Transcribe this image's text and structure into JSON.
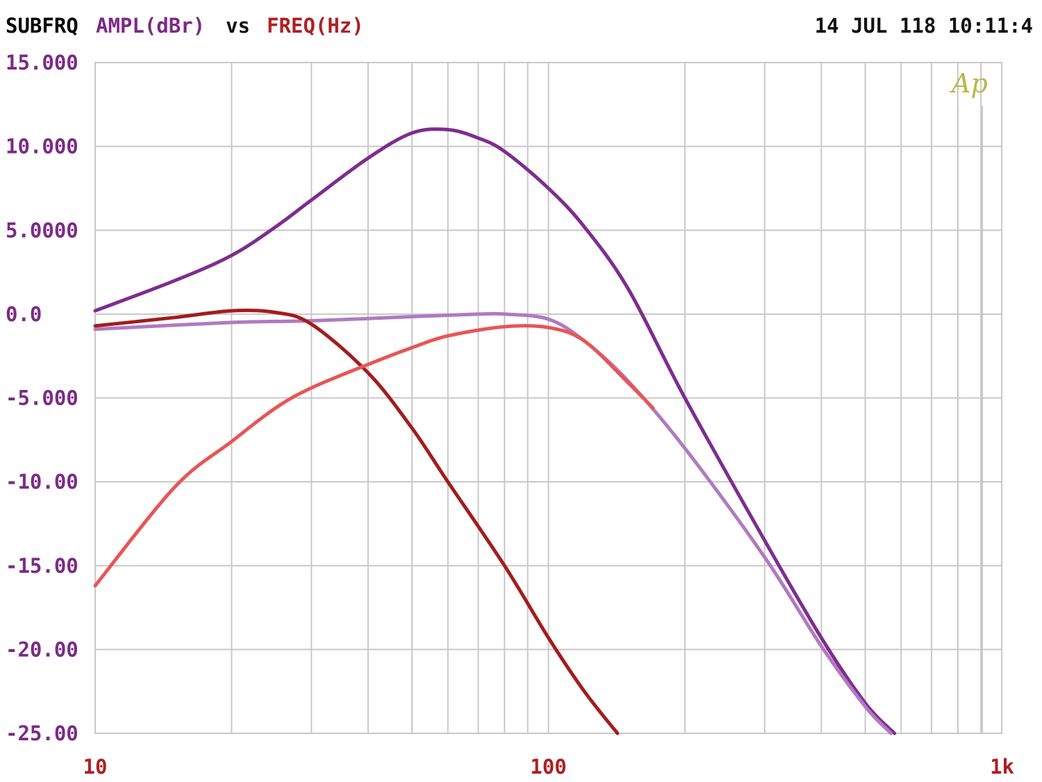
{
  "header": {
    "prefix": "SUBFRQ",
    "ylabel": "AMPL(dBr)",
    "vs": "vs",
    "xlabel": "FREQ(Hz)",
    "timestamp": "14 JUL 118 10:11:4"
  },
  "watermark": "Ap",
  "colors": {
    "ylabel": "#7b2a86",
    "xlabel": "#b01e22",
    "text": "#111111",
    "grid": "#c8c8c8",
    "watermark": "#b8b84a"
  },
  "chart_data": {
    "type": "line",
    "x_scale": "log",
    "xlim": [
      10,
      1000
    ],
    "ylim": [
      -25,
      15
    ],
    "grid": true,
    "x_ticks": [
      {
        "value": 10,
        "label": "10"
      },
      {
        "value": 100,
        "label": "100"
      },
      {
        "value": 1000,
        "label": "1k"
      }
    ],
    "y_ticks": [
      {
        "value": 15,
        "label": "15.000"
      },
      {
        "value": 10,
        "label": "10.000"
      },
      {
        "value": 5,
        "label": "5.0000"
      },
      {
        "value": 0,
        "label": "0.0"
      },
      {
        "value": -5,
        "label": "-5.000"
      },
      {
        "value": -10,
        "label": "-10.00"
      },
      {
        "value": -15,
        "label": "-15.00"
      },
      {
        "value": -20,
        "label": "-20.00"
      },
      {
        "value": -25,
        "label": "-25.00"
      }
    ],
    "series": [
      {
        "color": "#7d2d8e",
        "x": [
          10,
          15,
          20,
          25,
          30,
          40,
          50,
          60,
          70,
          80,
          100,
          120,
          150,
          200,
          300,
          400,
          500,
          580
        ],
        "y": [
          0.2,
          2.0,
          3.5,
          5.2,
          6.8,
          9.3,
          10.8,
          11.0,
          10.5,
          9.7,
          7.5,
          5.2,
          1.5,
          -5.0,
          -13.5,
          -19.3,
          -23.2,
          -25.0
        ]
      },
      {
        "color": "#b07ac0",
        "x": [
          10,
          20,
          30,
          50,
          70,
          80,
          100,
          120,
          150,
          200,
          300,
          400,
          500,
          570
        ],
        "y": [
          -0.9,
          -0.5,
          -0.4,
          -0.15,
          0.0,
          0.0,
          -0.3,
          -1.6,
          -4.0,
          -8.0,
          -14.5,
          -19.8,
          -23.4,
          -25.0
        ]
      },
      {
        "color": "#a41c1c",
        "x": [
          10,
          15,
          20,
          25,
          30,
          40,
          50,
          60,
          80,
          100,
          120,
          142
        ],
        "y": [
          -0.7,
          -0.2,
          0.2,
          0.1,
          -0.6,
          -3.5,
          -6.8,
          -10.0,
          -15.0,
          -19.3,
          -22.5,
          -25.0
        ]
      },
      {
        "color": "#e85555",
        "x": [
          10,
          15,
          20,
          25,
          30,
          40,
          50,
          60,
          80,
          100,
          120,
          150,
          170
        ],
        "y": [
          -16.2,
          -10.3,
          -7.6,
          -5.6,
          -4.4,
          -3.0,
          -2.0,
          -1.3,
          -0.75,
          -0.8,
          -1.6,
          -4.1,
          -5.6
        ]
      }
    ]
  }
}
